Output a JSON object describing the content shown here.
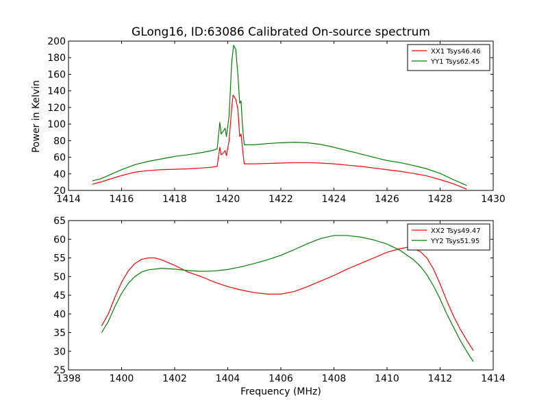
{
  "chart_data": [
    {
      "type": "line",
      "title": "GLong16, ID:63086 Calibrated On-source spectrum",
      "xlabel": "",
      "ylabel": "Power in Kelvin",
      "xlim": [
        1414,
        1430
      ],
      "ylim": [
        20,
        200
      ],
      "xticks": [
        "1414",
        "1416",
        "1418",
        "1420",
        "1422",
        "1424",
        "1426",
        "1428",
        "1430"
      ],
      "yticks": [
        "20",
        "40",
        "60",
        "80",
        "100",
        "120",
        "140",
        "160",
        "180",
        "200"
      ],
      "grid": false,
      "legend_position": "top-right",
      "series": [
        {
          "name": "XX1 Tsys46.46",
          "color": "#ff0000",
          "points": [
            [
              1414.9,
              27.5
            ],
            [
              1415.2,
              30
            ],
            [
              1415.5,
              33
            ],
            [
              1416.0,
              38
            ],
            [
              1416.5,
              42
            ],
            [
              1417.0,
              44
            ],
            [
              1417.5,
              45
            ],
            [
              1418.0,
              45.5
            ],
            [
              1418.5,
              46
            ],
            [
              1419.0,
              47
            ],
            [
              1419.4,
              48
            ],
            [
              1419.6,
              49
            ],
            [
              1419.7,
              72
            ],
            [
              1419.75,
              63
            ],
            [
              1419.8,
              64
            ],
            [
              1419.9,
              68
            ],
            [
              1419.95,
              62
            ],
            [
              1420.05,
              80
            ],
            [
              1420.15,
              120
            ],
            [
              1420.2,
              135
            ],
            [
              1420.3,
              130
            ],
            [
              1420.38,
              118
            ],
            [
              1420.45,
              85
            ],
            [
              1420.5,
              88
            ],
            [
              1420.55,
              72
            ],
            [
              1420.62,
              52
            ],
            [
              1421.0,
              52
            ],
            [
              1421.5,
              52.5
            ],
            [
              1422.0,
              53
            ],
            [
              1422.5,
              53.5
            ],
            [
              1423.0,
              53.5
            ],
            [
              1423.5,
              53
            ],
            [
              1424.0,
              52
            ],
            [
              1424.5,
              50.5
            ],
            [
              1425.0,
              49
            ],
            [
              1425.5,
              47
            ],
            [
              1426.0,
              45
            ],
            [
              1426.5,
              43
            ],
            [
              1427.0,
              40.5
            ],
            [
              1427.5,
              37.5
            ],
            [
              1428.0,
              33
            ],
            [
              1428.5,
              28
            ],
            [
              1429.0,
              21.5
            ]
          ]
        },
        {
          "name": "YY1 Tsys62.45",
          "color": "#008000",
          "points": [
            [
              1414.9,
              31.5
            ],
            [
              1415.2,
              34
            ],
            [
              1415.5,
              38
            ],
            [
              1416.0,
              45
            ],
            [
              1416.5,
              51
            ],
            [
              1417.0,
              55
            ],
            [
              1417.5,
              58
            ],
            [
              1418.0,
              61
            ],
            [
              1418.5,
              63
            ],
            [
              1419.0,
              65.5
            ],
            [
              1419.4,
              68
            ],
            [
              1419.6,
              70
            ],
            [
              1419.7,
              102
            ],
            [
              1419.75,
              88
            ],
            [
              1419.8,
              90
            ],
            [
              1419.9,
              95
            ],
            [
              1419.95,
              85
            ],
            [
              1420.05,
              110
            ],
            [
              1420.15,
              175
            ],
            [
              1420.22,
              195
            ],
            [
              1420.3,
              190
            ],
            [
              1420.38,
              160
            ],
            [
              1420.45,
              125
            ],
            [
              1420.5,
              128
            ],
            [
              1420.55,
              100
            ],
            [
              1420.62,
              75
            ],
            [
              1421.0,
              75
            ],
            [
              1421.5,
              76.5
            ],
            [
              1422.0,
              77.5
            ],
            [
              1422.5,
              78
            ],
            [
              1423.0,
              77.5
            ],
            [
              1423.5,
              75.5
            ],
            [
              1424.0,
              72
            ],
            [
              1424.5,
              68
            ],
            [
              1425.0,
              64
            ],
            [
              1425.5,
              60
            ],
            [
              1426.0,
              56
            ],
            [
              1426.5,
              53.5
            ],
            [
              1427.0,
              50
            ],
            [
              1427.5,
              46
            ],
            [
              1428.0,
              40.5
            ],
            [
              1428.5,
              33
            ],
            [
              1429.0,
              26
            ]
          ]
        }
      ]
    },
    {
      "type": "line",
      "title": "",
      "xlabel": "Frequency (MHz)",
      "ylabel": "",
      "xlim": [
        1398,
        1414
      ],
      "ylim": [
        25,
        65
      ],
      "xticks": [
        "1398",
        "1400",
        "1402",
        "1404",
        "1406",
        "1408",
        "1410",
        "1412",
        "1414"
      ],
      "yticks": [
        "25",
        "30",
        "35",
        "40",
        "45",
        "50",
        "55",
        "60",
        "65"
      ],
      "grid": false,
      "legend_position": "top-right",
      "series": [
        {
          "name": "XX2 Tsys49.47",
          "color": "#ff0000",
          "points": [
            [
              1399.25,
              36.8
            ],
            [
              1399.5,
              40
            ],
            [
              1399.75,
              44.5
            ],
            [
              1400.0,
              48.5
            ],
            [
              1400.25,
              51.5
            ],
            [
              1400.5,
              53.5
            ],
            [
              1400.75,
              54.6
            ],
            [
              1401.0,
              55
            ],
            [
              1401.25,
              55
            ],
            [
              1401.5,
              54.5
            ],
            [
              1402.0,
              53
            ],
            [
              1402.5,
              51.2
            ],
            [
              1403.0,
              50
            ],
            [
              1403.5,
              48.5
            ],
            [
              1404.0,
              47.3
            ],
            [
              1404.5,
              46.4
            ],
            [
              1405.0,
              45.7
            ],
            [
              1405.5,
              45.3
            ],
            [
              1406.0,
              45.3
            ],
            [
              1406.5,
              46
            ],
            [
              1407.0,
              47.3
            ],
            [
              1407.5,
              48.8
            ],
            [
              1408.0,
              50.3
            ],
            [
              1408.5,
              52
            ],
            [
              1409.0,
              53.5
            ],
            [
              1409.5,
              55
            ],
            [
              1410.0,
              56.5
            ],
            [
              1410.5,
              57.5
            ],
            [
              1410.75,
              57.8
            ],
            [
              1411.0,
              57.5
            ],
            [
              1411.25,
              56.7
            ],
            [
              1411.5,
              55
            ],
            [
              1411.75,
              52
            ],
            [
              1412.0,
              48
            ],
            [
              1412.25,
              43.5
            ],
            [
              1412.5,
              39.5
            ],
            [
              1412.75,
              36
            ],
            [
              1413.0,
              33
            ],
            [
              1413.25,
              30.2
            ]
          ]
        },
        {
          "name": "YY2 Tsys51.95",
          "color": "#008000",
          "points": [
            [
              1399.25,
              35
            ],
            [
              1399.5,
              38
            ],
            [
              1399.75,
              42
            ],
            [
              1400.0,
              45.5
            ],
            [
              1400.25,
              48.2
            ],
            [
              1400.5,
              50
            ],
            [
              1400.75,
              51.2
            ],
            [
              1401.0,
              51.8
            ],
            [
              1401.5,
              52.2
            ],
            [
              1402.0,
              52
            ],
            [
              1402.5,
              51.6
            ],
            [
              1403.0,
              51.4
            ],
            [
              1403.5,
              51.5
            ],
            [
              1404.0,
              51.9
            ],
            [
              1404.5,
              52.6
            ],
            [
              1405.0,
              53.5
            ],
            [
              1405.5,
              54.5
            ],
            [
              1406.0,
              55.7
            ],
            [
              1406.5,
              57.2
            ],
            [
              1407.0,
              58.8
            ],
            [
              1407.5,
              60.2
            ],
            [
              1408.0,
              61
            ],
            [
              1408.5,
              61
            ],
            [
              1409.0,
              60.6
            ],
            [
              1409.5,
              59.8
            ],
            [
              1410.0,
              58.7
            ],
            [
              1410.5,
              57
            ],
            [
              1411.0,
              54.5
            ],
            [
              1411.25,
              52.8
            ],
            [
              1411.5,
              50.5
            ],
            [
              1411.75,
              47.5
            ],
            [
              1412.0,
              44
            ],
            [
              1412.25,
              40
            ],
            [
              1412.5,
              36.5
            ],
            [
              1412.75,
              33
            ],
            [
              1413.0,
              30
            ],
            [
              1413.25,
              27.2
            ]
          ]
        }
      ]
    }
  ]
}
